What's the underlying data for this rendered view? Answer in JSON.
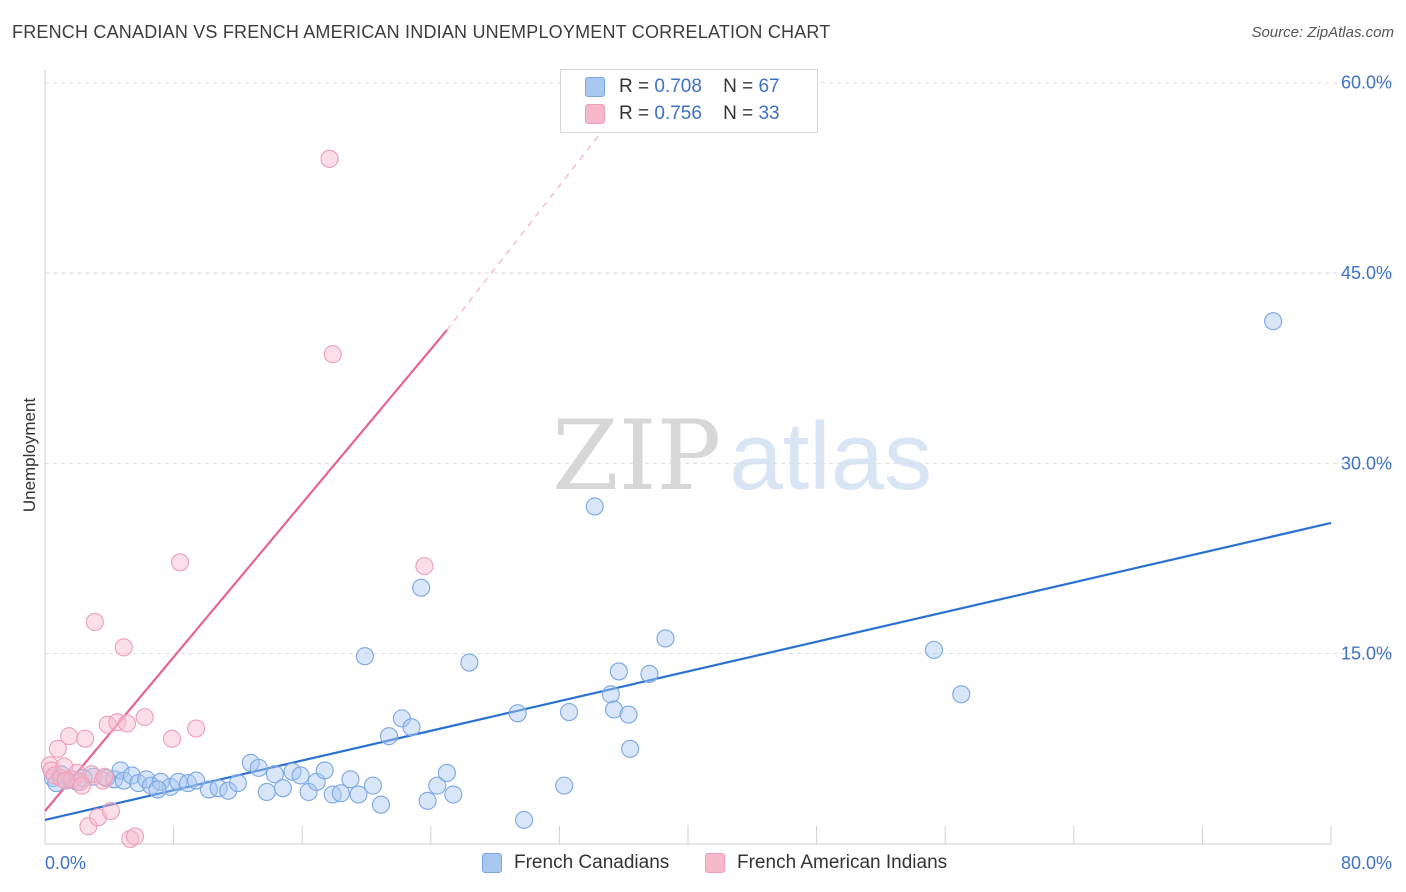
{
  "header": {
    "title": "FRENCH CANADIAN VS FRENCH AMERICAN INDIAN UNEMPLOYMENT CORRELATION CHART",
    "source": "Source: ZipAtlas.com"
  },
  "watermark": {
    "zip": "ZIP",
    "atlas": "atlas"
  },
  "legend_top": [
    {
      "r_label": "R =",
      "r_value": "0.708",
      "n_label": "N =",
      "n_value": "67",
      "color": "#a9c8f0"
    },
    {
      "r_label": "R =",
      "r_value": "0.756",
      "n_label": "N =",
      "n_value": "33",
      "color": "#f7b8cb"
    }
  ],
  "legend_bottom": [
    {
      "label": "French Canadians",
      "color": "#a9c8f0"
    },
    {
      "label": "French American Indians",
      "color": "#f7b8cb"
    }
  ],
  "chart_data": {
    "type": "scatter",
    "title": "FRENCH CANADIAN VS FRENCH AMERICAN INDIAN UNEMPLOYMENT CORRELATION CHART",
    "xlabel": "",
    "ylabel": "Unemployment",
    "xlim": [
      0,
      80
    ],
    "ylim": [
      0,
      61
    ],
    "x_tick_labels": [
      {
        "value": 0,
        "label": "0.0%"
      },
      {
        "value": 80,
        "label": "80.0%"
      }
    ],
    "y_tick_labels": [
      {
        "value": 15,
        "label": "15.0%"
      },
      {
        "value": 30,
        "label": "30.0%"
      },
      {
        "value": 45,
        "label": "45.0%"
      },
      {
        "value": 60,
        "label": "60.0%"
      }
    ],
    "grid": true,
    "legend_position": "top-center",
    "series": [
      {
        "name": "French Canadians",
        "color": "#7aa7e3",
        "fill": "#a9c8f0",
        "line_color": "#2b72d0",
        "trend": {
          "x": [
            0,
            80
          ],
          "y": [
            1.9,
            25.3
          ],
          "dashed_to": null
        },
        "points": [
          [
            0.5,
            5.2
          ],
          [
            0.7,
            4.8
          ],
          [
            1.0,
            5.5
          ],
          [
            1.3,
            5.0
          ],
          [
            1.6,
            5.1
          ],
          [
            2.0,
            4.9
          ],
          [
            2.4,
            5.2
          ],
          [
            3.0,
            5.3
          ],
          [
            3.8,
            5.2
          ],
          [
            4.3,
            5.1
          ],
          [
            4.7,
            5.8
          ],
          [
            4.9,
            5.0
          ],
          [
            5.4,
            5.4
          ],
          [
            5.8,
            4.8
          ],
          [
            6.3,
            5.1
          ],
          [
            6.6,
            4.6
          ],
          [
            7.2,
            4.9
          ],
          [
            7.8,
            4.5
          ],
          [
            8.3,
            4.9
          ],
          [
            8.9,
            4.8
          ],
          [
            9.4,
            5.0
          ],
          [
            10.2,
            4.3
          ],
          [
            10.8,
            4.4
          ],
          [
            11.4,
            4.2
          ],
          [
            12.0,
            4.8
          ],
          [
            12.8,
            6.4
          ],
          [
            13.3,
            6.0
          ],
          [
            13.8,
            4.1
          ],
          [
            14.3,
            5.5
          ],
          [
            14.8,
            4.4
          ],
          [
            15.4,
            5.7
          ],
          [
            15.9,
            5.4
          ],
          [
            16.4,
            4.1
          ],
          [
            16.9,
            4.9
          ],
          [
            17.4,
            5.8
          ],
          [
            17.9,
            3.9
          ],
          [
            18.4,
            4.0
          ],
          [
            19.0,
            5.1
          ],
          [
            19.5,
            3.9
          ],
          [
            19.9,
            14.8
          ],
          [
            20.4,
            4.6
          ],
          [
            20.9,
            3.1
          ],
          [
            21.4,
            8.5
          ],
          [
            22.2,
            9.9
          ],
          [
            22.8,
            9.2
          ],
          [
            23.4,
            20.2
          ],
          [
            23.8,
            3.4
          ],
          [
            24.4,
            4.6
          ],
          [
            25.0,
            5.6
          ],
          [
            25.4,
            3.9
          ],
          [
            26.4,
            14.3
          ],
          [
            29.4,
            10.3
          ],
          [
            29.8,
            1.9
          ],
          [
            32.3,
            4.6
          ],
          [
            32.6,
            10.4
          ],
          [
            34.2,
            26.6
          ],
          [
            35.2,
            11.8
          ],
          [
            35.4,
            10.6
          ],
          [
            35.7,
            13.6
          ],
          [
            36.3,
            10.2
          ],
          [
            36.4,
            7.5
          ],
          [
            37.6,
            13.4
          ],
          [
            38.6,
            16.2
          ],
          [
            55.3,
            15.3
          ],
          [
            57.0,
            11.8
          ],
          [
            76.4,
            41.2
          ],
          [
            7.0,
            4.3
          ]
        ]
      },
      {
        "name": "French American Indians",
        "color": "#ee9fb7",
        "fill": "#f7b8cb",
        "line_color": "#e5658e",
        "trend": {
          "x": [
            0,
            25
          ],
          "y": [
            2.6,
            40.5
          ],
          "dashed_to": [
            37,
            60
          ]
        },
        "points": [
          [
            0.3,
            6.2
          ],
          [
            0.4,
            5.8
          ],
          [
            0.6,
            5.4
          ],
          [
            0.8,
            7.5
          ],
          [
            1.0,
            5.2
          ],
          [
            1.2,
            6.1
          ],
          [
            1.5,
            8.5
          ],
          [
            1.7,
            5.1
          ],
          [
            2.0,
            5.6
          ],
          [
            2.2,
            4.9
          ],
          [
            2.5,
            8.3
          ],
          [
            2.7,
            1.4
          ],
          [
            2.9,
            5.5
          ],
          [
            3.1,
            17.5
          ],
          [
            3.3,
            2.1
          ],
          [
            3.6,
            5.0
          ],
          [
            3.9,
            9.4
          ],
          [
            4.1,
            2.6
          ],
          [
            4.5,
            9.6
          ],
          [
            4.9,
            15.5
          ],
          [
            5.1,
            9.5
          ],
          [
            5.3,
            0.4
          ],
          [
            5.6,
            0.6
          ],
          [
            6.2,
            10.0
          ],
          [
            7.9,
            8.3
          ],
          [
            8.4,
            22.2
          ],
          [
            9.4,
            9.1
          ],
          [
            17.7,
            54.0
          ],
          [
            17.9,
            38.6
          ],
          [
            23.6,
            21.9
          ],
          [
            1.3,
            5.0
          ],
          [
            2.3,
            4.6
          ],
          [
            3.7,
            5.3
          ]
        ]
      }
    ]
  }
}
